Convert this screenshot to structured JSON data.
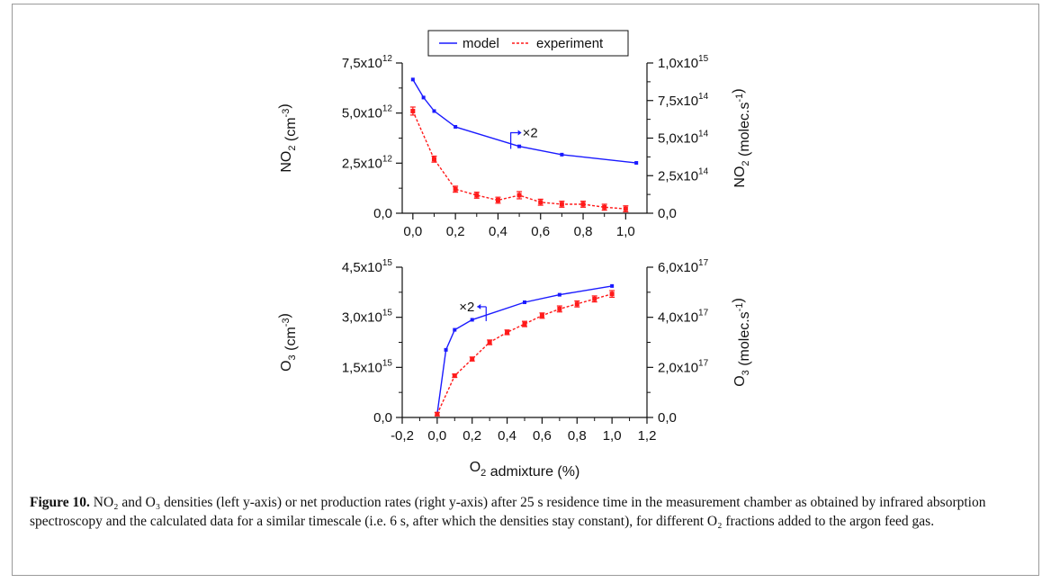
{
  "legend": {
    "model": "model",
    "experiment": "experiment"
  },
  "colors": {
    "model": "#1a1aff",
    "experiment": "#ff1a1a",
    "axis": "#111111"
  },
  "chart_data": [
    {
      "type": "line",
      "ylabel_left": "NO₂ (cm⁻³)",
      "ylabel_right": "NO₂ (molec.s⁻¹)",
      "xlim": [
        -0.05,
        1.1
      ],
      "ylim_left": [
        0,
        7500000000000.0
      ],
      "ylim_right": [
        0,
        1000000000000000.0
      ],
      "x_ticks": [
        0.0,
        0.2,
        0.4,
        0.6,
        0.8,
        1.0
      ],
      "x_tick_labels": [
        "0,0",
        "0,2",
        "0,4",
        "0,6",
        "0,8",
        "1,0"
      ],
      "y_left_ticks": [
        0,
        2500000000000.0,
        5000000000000.0,
        7500000000000.0
      ],
      "y_left_tick_labels": [
        [
          "0,0",
          ""
        ],
        [
          "2,5x10",
          "12"
        ],
        [
          "5,0x10",
          "12"
        ],
        [
          "7,5x10",
          "12"
        ]
      ],
      "y_right_ticks": [
        0,
        250000000000000.0,
        500000000000000.0,
        750000000000000.0,
        1000000000000000.0
      ],
      "y_right_tick_labels": [
        [
          "0,0",
          ""
        ],
        [
          "2,5x10",
          "14"
        ],
        [
          "5,0x10",
          "14"
        ],
        [
          "7,5x10",
          "14"
        ],
        [
          "1,0x10",
          "15"
        ]
      ],
      "annotation": "×2",
      "series": [
        {
          "name": "model",
          "axis": "right",
          "x": [
            0.0,
            0.05,
            0.1,
            0.2,
            0.5,
            0.7,
            1.05
          ],
          "y": [
            890000000000000.0,
            770000000000000.0,
            680000000000000.0,
            575000000000000.0,
            445000000000000.0,
            390000000000000.0,
            335000000000000.0
          ]
        },
        {
          "name": "experiment",
          "axis": "left",
          "x": [
            0.0,
            0.1,
            0.2,
            0.3,
            0.4,
            0.5,
            0.6,
            0.7,
            0.8,
            0.9,
            1.0
          ],
          "y": [
            5100000000000.0,
            2700000000000.0,
            1200000000000.0,
            900000000000.0,
            650000000000.0,
            900000000000.0,
            550000000000.0,
            450000000000.0,
            450000000000.0,
            300000000000.0,
            220000000000.0
          ],
          "err": [
            200000000000.0,
            150000000000.0,
            150000000000.0,
            150000000000.0,
            150000000000.0,
            180000000000.0,
            150000000000.0,
            150000000000.0,
            150000000000.0,
            150000000000.0,
            150000000000.0
          ]
        }
      ]
    },
    {
      "type": "line",
      "xlabel": "O₂ admixture (%)",
      "ylabel_left": "O₃ (cm⁻³)",
      "ylabel_right": "O₃ (molec.s⁻¹)",
      "xlim": [
        -0.2,
        1.2
      ],
      "ylim_left": [
        0,
        4500000000000000.0
      ],
      "ylim_right": [
        0,
        6e+17
      ],
      "x_ticks": [
        -0.2,
        0.0,
        0.2,
        0.4,
        0.6,
        0.8,
        1.0,
        1.2
      ],
      "x_tick_labels": [
        "-0,2",
        "0,0",
        "0,2",
        "0,4",
        "0,6",
        "0,8",
        "1,0",
        "1,2"
      ],
      "y_left_ticks": [
        0,
        1500000000000000.0,
        3000000000000000.0,
        4500000000000000.0
      ],
      "y_left_tick_labels": [
        [
          "0,0",
          ""
        ],
        [
          "1,5x10",
          "15"
        ],
        [
          "3,0x10",
          "15"
        ],
        [
          "4,5x10",
          "15"
        ]
      ],
      "y_right_ticks": [
        0,
        2e+17,
        4e+17,
        6e+17
      ],
      "y_right_tick_labels": [
        [
          "0,0",
          ""
        ],
        [
          "2,0x10",
          "17"
        ],
        [
          "4,0x10",
          "17"
        ],
        [
          "6,0x10",
          "17"
        ]
      ],
      "annotation": "×2",
      "series": [
        {
          "name": "model",
          "axis": "right",
          "x": [
            0.0,
            0.05,
            0.1,
            0.2,
            0.5,
            0.7,
            1.0
          ],
          "y": [
            1.5e+16,
            2.7e+17,
            3.5e+17,
            3.9e+17,
            4.6e+17,
            4.9e+17,
            5.25e+17
          ]
        },
        {
          "name": "experiment",
          "axis": "left",
          "x": [
            0.0,
            0.1,
            0.2,
            0.3,
            0.4,
            0.5,
            0.6,
            0.7,
            0.8,
            0.9,
            1.0
          ],
          "y": [
            100000000000000.0,
            1250000000000000.0,
            1750000000000000.0,
            2250000000000000.0,
            2550000000000000.0,
            2800000000000000.0,
            3050000000000000.0,
            3250000000000000.0,
            3400000000000000.0,
            3550000000000000.0,
            3700000000000000.0
          ],
          "err": [
            50000000000000.0,
            50000000000000.0,
            60000000000000.0,
            70000000000000.0,
            70000000000000.0,
            80000000000000.0,
            80000000000000.0,
            90000000000000.0,
            90000000000000.0,
            90000000000000.0,
            100000000000000.0
          ]
        }
      ]
    }
  ],
  "caption": {
    "label": "Figure 10.",
    "text": "NO₂ and O₃ densities (left y-axis) or net production rates (right y-axis) after 25 s residence time in the measurement chamber as obtained by infrared absorption spectroscopy and the calculated data for a similar timescale (i.e. 6 s, after which the densities stay constant), for different O₂ fractions added to the argon feed gas."
  }
}
